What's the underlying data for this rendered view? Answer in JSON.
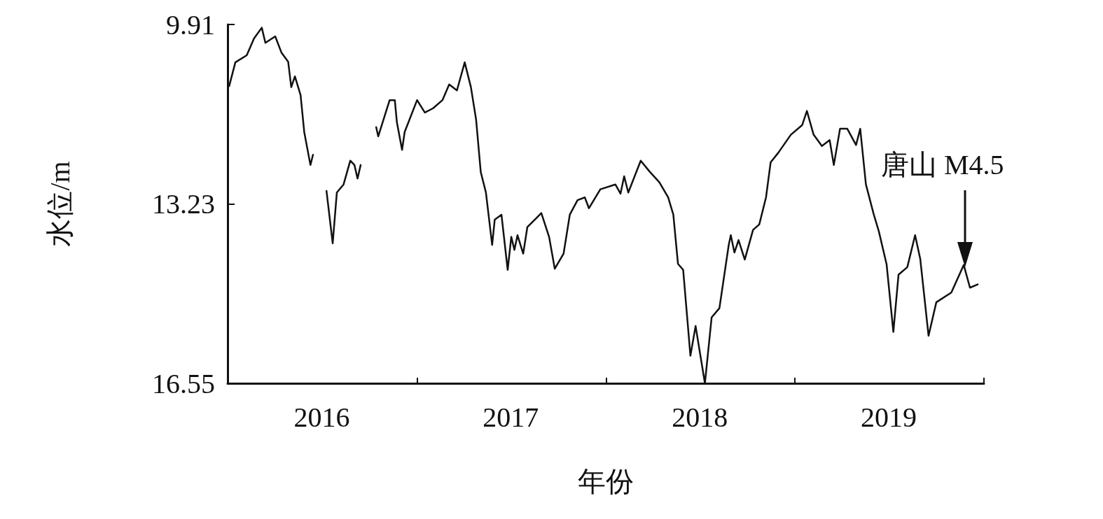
{
  "chart_data": {
    "type": "line",
    "xlabel": "年份",
    "ylabel": "水位/m",
    "xlim": [
      "2016-01-01",
      "2020-01-01"
    ],
    "xticks": [
      {
        "value": "2016-01-01",
        "label": null
      },
      {
        "value": "2016-07-01",
        "label": "2016"
      },
      {
        "value": "2017-01-01",
        "label": null
      },
      {
        "value": "2017-07-01",
        "label": "2017"
      },
      {
        "value": "2018-01-01",
        "label": null
      },
      {
        "value": "2018-07-01",
        "label": "2018"
      },
      {
        "value": "2019-01-01",
        "label": null
      },
      {
        "value": "2019-07-01",
        "label": "2019"
      },
      {
        "value": "2020-01-01",
        "label": null
      }
    ],
    "ylim": [
      16.55,
      9.91
    ],
    "yticks": [
      9.91,
      13.23,
      16.55
    ],
    "grid": false,
    "marker": "none",
    "line_style": "solid",
    "annotations": [
      "唐山 M4.5"
    ],
    "x": [
      "2016-01-04",
      "2016-01-16",
      "2016-02-07",
      "2016-02-21",
      "2016-03-07",
      "2016-03-14",
      "2016-04-02",
      "2016-04-14",
      "2016-04-27",
      "2016-05-03",
      "2016-05-10",
      "2016-05-21",
      "2016-05-28",
      "2016-06-09",
      "2016-06-14",
      "2016-06-28",
      "2016-07-10",
      "2016-07-22",
      "2016-07-30",
      "2016-08-12",
      "2016-08-25",
      "2016-09-02",
      "2016-09-08",
      "2016-09-14",
      "2016-10-01",
      "2016-10-14",
      "2016-10-18",
      "2016-11-09",
      "2016-11-19",
      "2016-11-23",
      "2016-12-03",
      "2016-12-08",
      "2017-01-01",
      "2017-01-16",
      "2017-02-01",
      "2017-02-19",
      "2017-03-04",
      "2017-03-19",
      "2017-04-03",
      "2017-04-15",
      "2017-04-25",
      "2017-05-04",
      "2017-05-14",
      "2017-05-26",
      "2017-05-31",
      "2017-06-13",
      "2017-06-25",
      "2017-07-02",
      "2017-07-08",
      "2017-07-14",
      "2017-07-25",
      "2017-08-02",
      "2017-08-29",
      "2017-09-13",
      "2017-09-24",
      "2017-10-11",
      "2017-10-23",
      "2017-11-07",
      "2017-11-21",
      "2017-11-29",
      "2017-12-21",
      "2018-01-19",
      "2018-01-29",
      "2018-02-05",
      "2018-02-13",
      "2018-03-09",
      "2018-03-26",
      "2018-04-14",
      "2018-05-01",
      "2018-05-11",
      "2018-05-20",
      "2018-05-30",
      "2018-06-13",
      "2018-06-23",
      "2018-07-11",
      "2018-07-24",
      "2018-08-08",
      "2018-08-26",
      "2018-08-30",
      "2018-09-06",
      "2018-09-14",
      "2018-09-26",
      "2018-10-12",
      "2018-10-24",
      "2018-11-06",
      "2018-11-15",
      "2018-11-30",
      "2018-12-24",
      "2019-01-15",
      "2019-01-24",
      "2019-02-06",
      "2019-02-22",
      "2019-03-09",
      "2019-03-17",
      "2019-03-29",
      "2019-04-12",
      "2019-04-29",
      "2019-05-07",
      "2019-05-18",
      "2019-06-02",
      "2019-06-12",
      "2019-06-27",
      "2019-07-10",
      "2019-07-20",
      "2019-08-06",
      "2019-08-21",
      "2019-08-31",
      "2019-09-16",
      "2019-10-01",
      "2019-10-30",
      "2019-11-23",
      "2019-12-05",
      "2019-12-20"
    ],
    "series": [
      {
        "color": "#111111",
        "values": [
          11.05,
          10.61,
          10.48,
          10.17,
          9.97,
          10.25,
          10.13,
          10.43,
          10.6,
          11.07,
          10.87,
          11.22,
          11.9,
          12.51,
          12.32,
          null,
          12.99,
          13.96,
          13.02,
          12.87,
          12.43,
          12.51,
          12.76,
          12.51,
          null,
          11.81,
          11.98,
          11.31,
          11.31,
          11.72,
          12.23,
          11.9,
          11.31,
          11.54,
          11.46,
          11.31,
          11.02,
          11.13,
          10.61,
          11.07,
          11.67,
          12.64,
          13.02,
          13.99,
          13.52,
          13.43,
          14.45,
          13.84,
          14.08,
          13.81,
          14.15,
          13.66,
          13.4,
          13.84,
          14.43,
          14.15,
          13.43,
          13.16,
          13.11,
          13.31,
          12.96,
          12.87,
          13.04,
          12.72,
          13.02,
          12.43,
          12.63,
          12.83,
          13.11,
          13.43,
          14.34,
          14.45,
          16.04,
          15.49,
          16.55,
          15.33,
          15.16,
          13.99,
          13.81,
          14.13,
          13.9,
          14.26,
          13.71,
          13.61,
          13.11,
          12.46,
          12.28,
          11.95,
          11.77,
          11.51,
          11.95,
          12.16,
          12.05,
          12.51,
          11.84,
          11.84,
          12.14,
          11.84,
          12.87,
          13.42,
          13.74,
          14.35,
          15.6,
          14.54,
          14.4,
          13.81,
          14.25,
          15.67,
          15.05,
          14.87,
          14.36,
          14.78,
          14.72
        ]
      }
    ]
  }
}
